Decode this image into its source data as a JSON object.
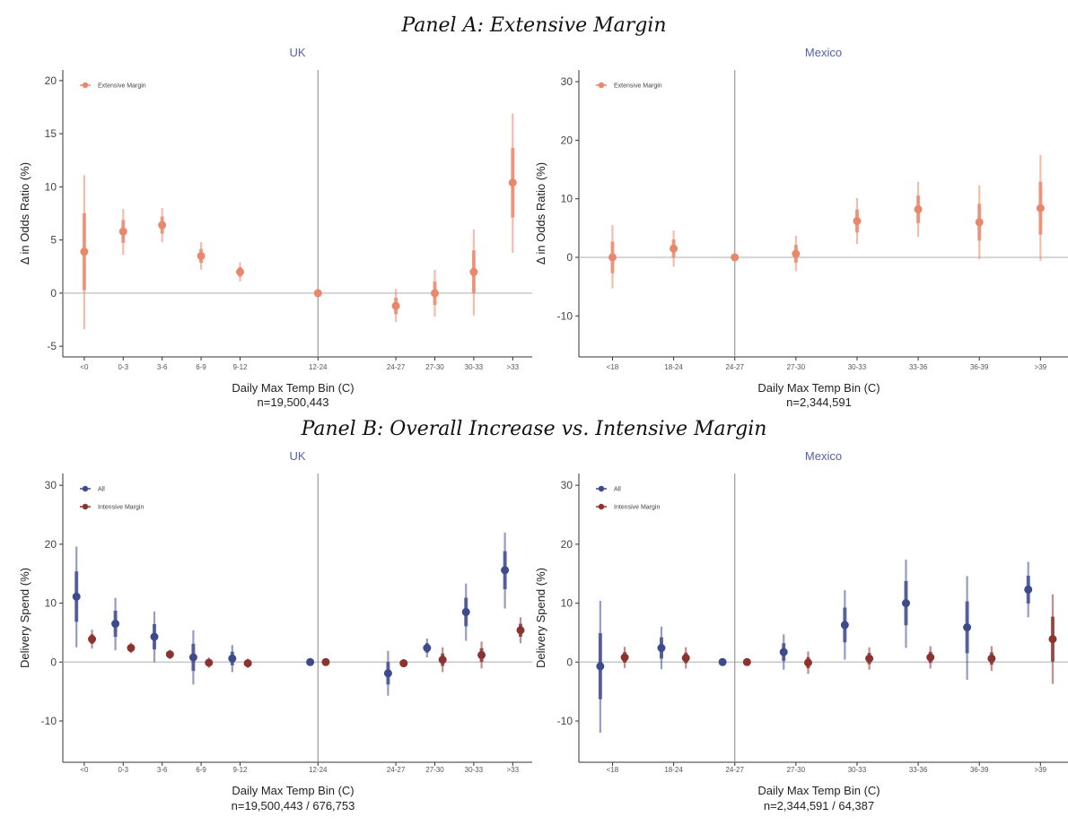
{
  "panels": [
    {
      "title": "Panel A: Extensive Margin"
    },
    {
      "title": "Panel B: Overall Increase vs. Intensive Margin"
    }
  ],
  "chart_data": [
    {
      "type": "scatter",
      "title": "UK",
      "xlabel": "Daily Max Temp Bin (C)",
      "note": "n=19,500,443",
      "ylabel": "Δ in Odds Ratio (%)",
      "categories": [
        "<0",
        "0-3",
        "3-6",
        "6-9",
        "9-12",
        "12-24",
        "24-27",
        "27-30",
        "30-33",
        ">33"
      ],
      "x": [
        0,
        1,
        2,
        3,
        4,
        6,
        8,
        9,
        10,
        11
      ],
      "ylim": [
        -6,
        21
      ],
      "yticks": [
        -5,
        0,
        5,
        10,
        15,
        20
      ],
      "reference_x": 6,
      "legend_position": "top-left",
      "series": [
        {
          "name": "Extensive Margin",
          "color": "#e8876b",
          "values": [
            3.9,
            5.8,
            6.4,
            3.5,
            2.0,
            0,
            -1.2,
            0.0,
            2.0,
            10.4
          ],
          "low": [
            -3.4,
            3.6,
            4.8,
            2.2,
            1.1,
            0,
            -2.7,
            -2.2,
            -2.1,
            3.8
          ],
          "high": [
            11.1,
            7.9,
            8.0,
            4.8,
            2.9,
            0,
            0.4,
            2.2,
            6.0,
            16.9
          ]
        }
      ]
    },
    {
      "type": "scatter",
      "title": "Mexico",
      "xlabel": "Daily Max Temp Bin (C)",
      "note": "n=2,344,591",
      "ylabel": "Δ in Odds Ratio (%)",
      "categories": [
        "<18",
        "18-24",
        "24-27",
        "27-30",
        "30-33",
        "33-36",
        "36-39",
        ">39"
      ],
      "x": [
        0,
        1,
        2,
        3,
        4,
        5,
        6,
        7
      ],
      "ylim": [
        -17,
        32
      ],
      "yticks": [
        -10,
        0,
        10,
        20,
        30
      ],
      "reference_x": 2,
      "legend_position": "top-left",
      "series": [
        {
          "name": "Extensive Margin",
          "color": "#e8876b",
          "values": [
            0.0,
            1.5,
            0,
            0.6,
            6.2,
            8.2,
            6.0,
            8.4
          ],
          "low": [
            -5.3,
            -1.6,
            0,
            -2.4,
            2.3,
            3.5,
            -0.3,
            -0.6
          ],
          "high": [
            5.5,
            4.6,
            0,
            3.7,
            10.1,
            12.9,
            12.3,
            17.5
          ]
        }
      ]
    },
    {
      "type": "scatter",
      "title": "UK",
      "xlabel": "Daily Max Temp Bin (C)",
      "note": "n=19,500,443 / 676,753",
      "ylabel": "Delivery Spend (%)",
      "categories": [
        "<0",
        "0-3",
        "3-6",
        "6-9",
        "9-12",
        "12-24",
        "24-27",
        "27-30",
        "30-33",
        ">33"
      ],
      "x": [
        0,
        1,
        2,
        3,
        4,
        6,
        8,
        9,
        10,
        11
      ],
      "ylim": [
        -17,
        32
      ],
      "yticks": [
        -10,
        0,
        10,
        20,
        30
      ],
      "reference_x": 6,
      "legend_position": "top-left",
      "series": [
        {
          "name": "All",
          "color": "#3d4a8c",
          "values": [
            11.1,
            6.5,
            4.3,
            0.8,
            0.6,
            0,
            -1.9,
            2.4,
            8.5,
            15.6
          ],
          "low": [
            2.5,
            2.0,
            0.0,
            -3.8,
            -1.7,
            0,
            -5.7,
            0.8,
            3.6,
            9.1
          ],
          "high": [
            19.6,
            10.9,
            8.6,
            5.4,
            2.9,
            0,
            1.9,
            4.0,
            13.3,
            22.0
          ]
        },
        {
          "name": "Intensive Margin",
          "color": "#8a3330",
          "values": [
            3.9,
            2.4,
            1.3,
            -0.1,
            -0.2,
            0,
            -0.2,
            0.4,
            1.2,
            5.4
          ],
          "low": [
            2.3,
            1.5,
            0.5,
            -1.0,
            -1.0,
            0,
            -0.9,
            -1.7,
            -1.1,
            3.2
          ],
          "high": [
            5.5,
            3.3,
            2.1,
            0.8,
            0.6,
            0,
            0.5,
            2.5,
            3.5,
            7.6
          ]
        }
      ]
    },
    {
      "type": "scatter",
      "title": "Mexico",
      "xlabel": "Daily Max Temp Bin (C)",
      "note": "n=2,344,591 / 64,387",
      "ylabel": "Delivery Spend (%)",
      "categories": [
        "<18",
        "18-24",
        "24-27",
        "27-30",
        "30-33",
        "33-36",
        "36-39",
        ">39"
      ],
      "x": [
        0,
        1,
        2,
        3,
        4,
        5,
        6,
        7
      ],
      "ylim": [
        -17,
        32
      ],
      "yticks": [
        -10,
        0,
        10,
        20,
        30
      ],
      "reference_x": 2,
      "legend_position": "top-left",
      "series": [
        {
          "name": "All",
          "color": "#3d4a8c",
          "values": [
            -0.7,
            2.4,
            0,
            1.7,
            6.3,
            10.0,
            5.9,
            12.3
          ],
          "low": [
            -12.0,
            -1.2,
            0,
            -1.3,
            0.4,
            2.4,
            -3.0,
            7.6
          ],
          "high": [
            10.4,
            6.0,
            0,
            4.7,
            12.2,
            17.4,
            14.6,
            17.0
          ]
        },
        {
          "name": "Intensive Margin",
          "color": "#8a3330",
          "values": [
            0.8,
            0.7,
            0,
            -0.1,
            0.6,
            0.8,
            0.6,
            3.9
          ],
          "low": [
            -1.0,
            -1.1,
            0,
            -2.0,
            -1.3,
            -1.1,
            -1.5,
            -3.7
          ],
          "high": [
            2.6,
            2.5,
            0,
            1.8,
            2.5,
            2.7,
            2.7,
            11.5
          ]
        }
      ]
    }
  ]
}
